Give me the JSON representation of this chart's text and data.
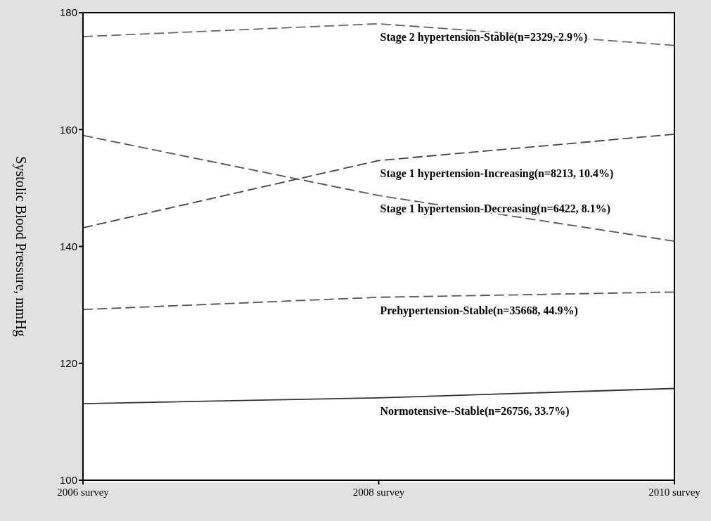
{
  "chart_data": {
    "type": "line",
    "ylabel": "Systolic Blood Pressure, mmHg",
    "categories": [
      "2006 survey",
      "2008 survey",
      "2010 survey"
    ],
    "ylim": [
      100,
      180
    ],
    "yticks": [
      100,
      120,
      140,
      160,
      180
    ],
    "grid": false,
    "legend": false,
    "marker": "none",
    "series": [
      {
        "name": "Stage 2 hypertension-Stable(n=2329, 2.9%)",
        "color": "#666666",
        "line_style": "dashed",
        "values": [
          175.9,
          178.1,
          174.4
        ]
      },
      {
        "name": "Stage 1 hypertension-Increasing(n=8213, 10.4%)",
        "color": "#444444",
        "line_style": "dashed",
        "values": [
          143.2,
          154.7,
          159.2
        ]
      },
      {
        "name": "Stage 1 hypertension-Decreasing(n=6422, 8.1%)",
        "color": "#555555",
        "line_style": "dashed",
        "values": [
          159.0,
          148.7,
          140.9
        ]
      },
      {
        "name": "Prehypertension-Stable(n=35668, 44.9%)",
        "color": "#555555",
        "line_style": "dashed",
        "values": [
          129.2,
          131.3,
          132.2
        ]
      },
      {
        "name": "Normotensive--Stable(n=26756, 33.7%)",
        "color": "#333333",
        "line_style": "solid",
        "values": [
          113.1,
          114.1,
          115.7
        ]
      }
    ]
  }
}
